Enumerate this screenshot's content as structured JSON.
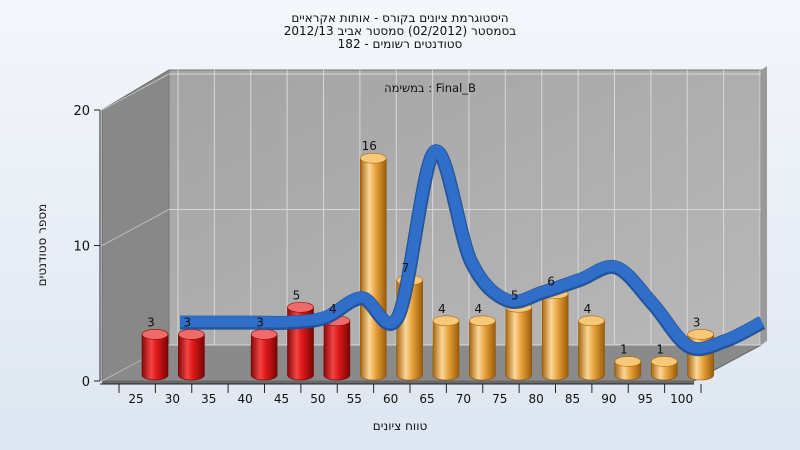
{
  "chart_data": {
    "type": "bar",
    "title_lines": [
      "היסטוגרמת ציונים בקורס - אותות אקראיים",
      "בסמסטר  (02/2012)  סמסטר אביב 2012/13",
      "סטודנטים רשומים - 182"
    ],
    "subtitle": "במשימה : Final_B",
    "xlabel": "טווח ציונים",
    "ylabel": "מספר סטודנטים",
    "ylim": [
      0,
      20
    ],
    "yticks": [
      0,
      10,
      20
    ],
    "categories": [
      "25",
      "30",
      "35",
      "40",
      "45",
      "50",
      "55",
      "60",
      "65",
      "70",
      "75",
      "80",
      "85",
      "90",
      "95",
      "100"
    ],
    "values": [
      3,
      3,
      0,
      3,
      5,
      4,
      16,
      7,
      4,
      4,
      5,
      6,
      4,
      1,
      1,
      3
    ],
    "bar_colors": [
      "#e01a1a",
      "#e01a1a",
      "#e01a1a",
      "#e01a1a",
      "#e01a1a",
      "#e01a1a",
      "#e6a13a",
      "#e6a13a",
      "#e6a13a",
      "#e6a13a",
      "#e6a13a",
      "#e6a13a",
      "#e6a13a",
      "#e6a13a",
      "#e6a13a",
      "#e6a13a"
    ],
    "overlay_curve": {
      "type": "smoothed-line",
      "color": "#2f6fc9",
      "values": [
        3,
        3,
        3,
        3,
        3.4,
        5,
        3.5,
        17,
        8,
        4.8,
        5.5,
        6.5,
        7.5,
        4.5,
        1,
        1.5,
        3
      ]
    },
    "grid": true,
    "colors": {
      "wall": "#aaaaaa",
      "side_wall": "#888888",
      "floor": "#8a8a8a",
      "grid": "#d8d8d8"
    }
  }
}
